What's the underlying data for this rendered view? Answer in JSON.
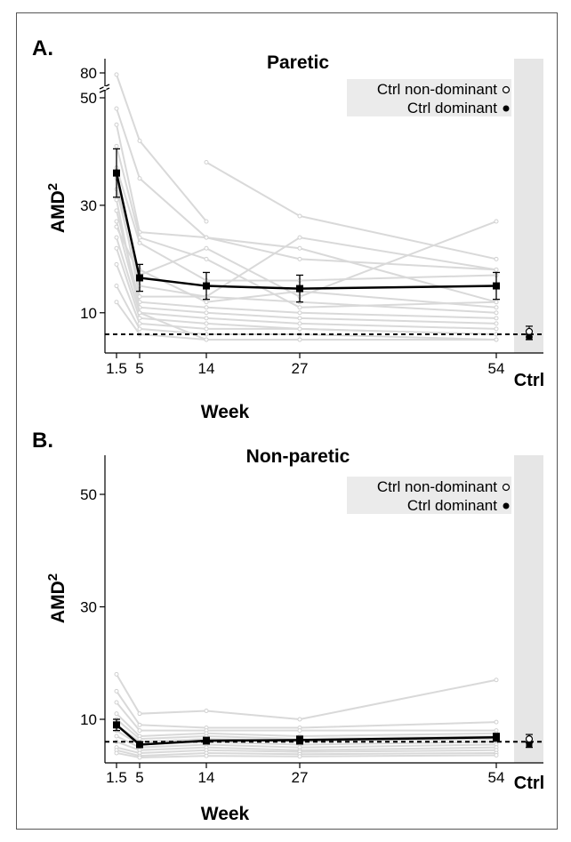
{
  "chart_data": [
    {
      "type": "line",
      "panel_label": "A.",
      "title": "Paretic",
      "xlabel": "Week",
      "ylabel": "AMD",
      "ylabel_superscript": "2",
      "x_ticks": [
        "1.5",
        "5",
        "14",
        "27",
        "54"
      ],
      "ctrl_label": "Ctrl",
      "y_ticks": [
        "10",
        "30",
        "50",
        "80"
      ],
      "y_axis_break": "between 50 and 80",
      "ylim": [
        5,
        82
      ],
      "legend_position": "top-right",
      "legend": [
        "Ctrl non-dominant",
        "Ctrl dominant"
      ],
      "reference_line": {
        "style": "dashed",
        "y": 6
      },
      "mean_series": {
        "x": [
          1.5,
          5,
          14,
          27,
          54
        ],
        "y": [
          36,
          16.5,
          15,
          14.5,
          15
        ],
        "err_low": [
          31.5,
          14,
          12.5,
          12,
          12.5
        ],
        "err_high": [
          40.5,
          19,
          17.5,
          17,
          17.5
        ]
      },
      "ctrl": {
        "non_dominant": {
          "y": 6.5,
          "err_low": 5.5,
          "err_high": 7.5
        },
        "dominant": {
          "y": 5.5,
          "err_low": 5,
          "err_high": 6
        }
      },
      "individuals": [
        {
          "x": [
            1.5,
            5,
            14
          ],
          "y": [
            78,
            42,
            27
          ]
        },
        {
          "x": [
            1.5,
            5,
            14,
            27,
            54
          ],
          "y": [
            48,
            35,
            24,
            20,
            18
          ]
        },
        {
          "x": [
            1.5,
            5,
            14,
            27,
            54
          ],
          "y": [
            45,
            25,
            24,
            22,
            12
          ]
        },
        {
          "x": [
            1.5,
            5,
            14,
            27,
            54
          ],
          "y": [
            41,
            24,
            20,
            11,
            12
          ]
        },
        {
          "x": [
            1.5,
            5,
            14,
            27,
            54
          ],
          "y": [
            37,
            23,
            16,
            16,
            17
          ]
        },
        {
          "x": [
            1.5,
            5,
            14,
            27,
            54
          ],
          "y": [
            33,
            15,
            13,
            12,
            10
          ]
        },
        {
          "x": [
            1.5,
            5,
            14,
            27,
            54
          ],
          "y": [
            29,
            12,
            11,
            10,
            9
          ]
        },
        {
          "x": [
            1.5,
            5,
            14,
            27,
            54
          ],
          "y": [
            27,
            11,
            10,
            9,
            8
          ]
        },
        {
          "x": [
            1.5,
            5,
            14,
            27,
            54
          ],
          "y": [
            24,
            10,
            9,
            8,
            7
          ]
        },
        {
          "x": [
            1.5,
            5,
            14,
            27,
            54
          ],
          "y": [
            22,
            9,
            8,
            7,
            6
          ]
        },
        {
          "x": [
            1.5,
            5,
            14,
            27,
            54
          ],
          "y": [
            19,
            8,
            7,
            7,
            6
          ]
        },
        {
          "x": [
            1.5,
            5,
            14,
            27,
            54
          ],
          "y": [
            15,
            7,
            6,
            6,
            5
          ]
        },
        {
          "x": [
            1.5,
            5,
            14,
            27,
            54
          ],
          "y": [
            12,
            6,
            5,
            5,
            5
          ]
        },
        {
          "x": [
            14,
            27,
            54
          ],
          "y": [
            38,
            28,
            20
          ]
        },
        {
          "x": [
            1.5,
            5,
            14,
            27,
            54
          ],
          "y": [
            26,
            17,
            22,
            13,
            27
          ]
        },
        {
          "x": [
            1.5,
            5,
            14,
            27,
            54
          ],
          "y": [
            35,
            13,
            13,
            24,
            18
          ]
        },
        {
          "x": [
            1.5,
            5,
            14,
            27,
            54
          ],
          "y": [
            31,
            10,
            5,
            5,
            5
          ]
        },
        {
          "x": [
            5,
            14,
            27,
            54
          ],
          "y": [
            18,
            12,
            14,
            11
          ]
        }
      ]
    },
    {
      "type": "line",
      "panel_label": "B.",
      "title": "Non-paretic",
      "xlabel": "Week",
      "ylabel": "AMD",
      "ylabel_superscript": "2",
      "x_ticks": [
        "1.5",
        "5",
        "14",
        "27",
        "54"
      ],
      "ctrl_label": "Ctrl",
      "y_ticks": [
        "10",
        "30",
        "50"
      ],
      "ylim": [
        1,
        57
      ],
      "legend_position": "top-right",
      "legend": [
        "Ctrl non-dominant",
        "Ctrl dominant"
      ],
      "reference_line": {
        "style": "dashed",
        "y": 6
      },
      "mean_series": {
        "x": [
          1.5,
          5,
          14,
          27,
          54
        ],
        "y": [
          9,
          5.5,
          6.2,
          6.3,
          6.8
        ],
        "err_low": [
          8,
          5,
          5.6,
          5.6,
          6.1
        ],
        "err_high": [
          10,
          6,
          6.8,
          7,
          7.5
        ]
      },
      "ctrl": {
        "non_dominant": {
          "y": 6.5,
          "err_low": 5.8,
          "err_high": 7.3
        },
        "dominant": {
          "y": 5.5,
          "err_low": 5,
          "err_high": 6
        }
      },
      "individuals": [
        {
          "x": [
            1.5,
            5,
            14,
            27,
            54
          ],
          "y": [
            18,
            11,
            11.5,
            10,
            17
          ]
        },
        {
          "x": [
            1.5,
            5,
            14,
            27,
            54
          ],
          "y": [
            15,
            9,
            8.5,
            8.5,
            9.5
          ]
        },
        {
          "x": [
            1.5,
            5,
            14,
            27,
            54
          ],
          "y": [
            13,
            8,
            8,
            8,
            8
          ]
        },
        {
          "x": [
            1.5,
            5,
            14,
            27,
            54
          ],
          "y": [
            11,
            7,
            7.5,
            7,
            7.5
          ]
        },
        {
          "x": [
            1.5,
            5,
            14,
            27,
            54
          ],
          "y": [
            10,
            6.5,
            7,
            6.5,
            7
          ]
        },
        {
          "x": [
            1.5,
            5,
            14,
            27,
            54
          ],
          "y": [
            9,
            6,
            6.5,
            6,
            6.5
          ]
        },
        {
          "x": [
            1.5,
            5,
            14,
            27,
            54
          ],
          "y": [
            8,
            5.5,
            6,
            5.5,
            6
          ]
        },
        {
          "x": [
            1.5,
            5,
            14,
            27,
            54
          ],
          "y": [
            7,
            5,
            5.5,
            5,
            5.5
          ]
        },
        {
          "x": [
            1.5,
            5,
            14,
            27,
            54
          ],
          "y": [
            6,
            4.5,
            5,
            4.5,
            5
          ]
        },
        {
          "x": [
            1.5,
            5,
            14,
            27,
            54
          ],
          "y": [
            5,
            4,
            4.5,
            4.2,
            4.5
          ]
        },
        {
          "x": [
            1.5,
            5,
            14,
            27,
            54
          ],
          "y": [
            4.5,
            3.5,
            4,
            3.8,
            4
          ]
        },
        {
          "x": [
            1.5,
            5,
            14,
            27,
            54
          ],
          "y": [
            4,
            3.2,
            3.5,
            3.4,
            3.6
          ]
        }
      ]
    }
  ]
}
